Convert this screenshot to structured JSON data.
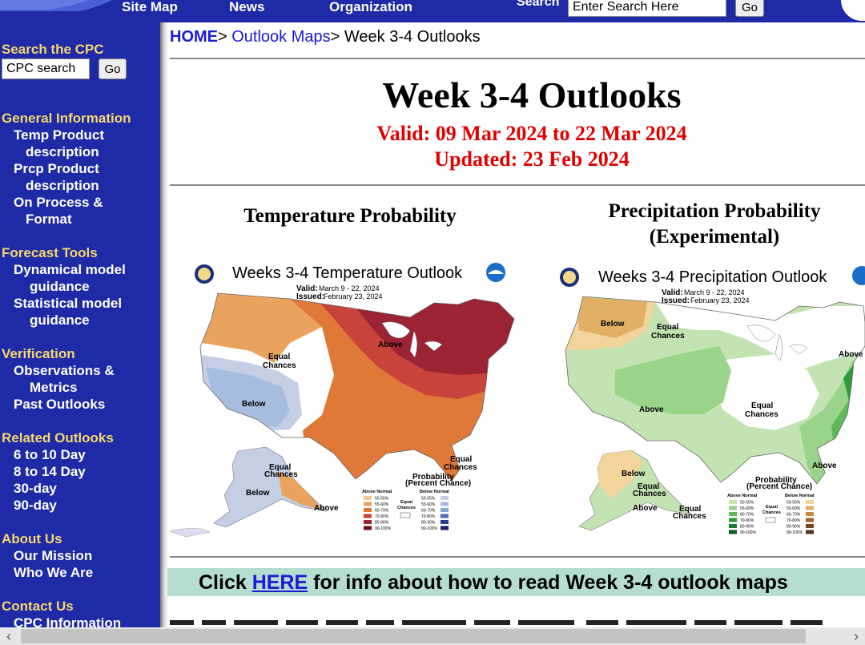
{
  "topnav": {
    "items": [
      "Site Map",
      "News",
      "Organization"
    ],
    "search_label": "Search",
    "search_value": "Enter Search Here",
    "go_label": "Go"
  },
  "sidebar": {
    "search_heading": "Search the CPC",
    "search_value": "CPC search",
    "go_label": "Go",
    "sections": [
      {
        "heading": "General Information",
        "links": [
          [
            "Temp Product",
            "description"
          ],
          [
            "Prcp Product",
            "description"
          ],
          [
            "On Process &",
            "Format"
          ]
        ]
      },
      {
        "heading": "Forecast Tools",
        "links": [
          [
            "Dynamical model",
            "guidance"
          ],
          [
            "Statistical model",
            "guidance"
          ]
        ]
      },
      {
        "heading": "Verification",
        "links": [
          [
            "Observations &",
            "Metrics"
          ],
          [
            "Past Outlooks"
          ]
        ]
      },
      {
        "heading": "Related Outlooks",
        "links": [
          [
            "6 to 10 Day"
          ],
          [
            "8 to 14 Day"
          ],
          [
            "30-day"
          ],
          [
            "90-day"
          ]
        ]
      },
      {
        "heading": "About Us",
        "links": [
          [
            "Our Mission"
          ],
          [
            "Who We Are"
          ]
        ]
      },
      {
        "heading": "Contact Us",
        "links": [
          [
            "CPC Information"
          ]
        ]
      }
    ]
  },
  "breadcrumb": {
    "home": "HOME",
    "sep": "> ",
    "outlook_maps": "Outlook Maps",
    "current": "Week 3-4 Outlooks"
  },
  "title": "Week 3-4 Outlooks",
  "valid": "Valid: 09 Mar 2024 to 22 Mar 2024",
  "updated": "Updated: 23 Feb 2024",
  "temp": {
    "heading": "Temperature Probability",
    "map_title": "Weeks 3-4 Temperature Outlook",
    "valid": "Valid:",
    "valid_dates": "March 9 - 22, 2024",
    "issued": "Issued:",
    "issued_date": "February 23, 2024",
    "labels": {
      "above": "Above",
      "below": "Below",
      "equal": "Equal",
      "chances": "Chances"
    },
    "legend_title": "Probability",
    "legend_sub": "(Percent Chance)",
    "legend_above": "Above Normal",
    "legend_below": "Below Normal",
    "legend_equal": "Equal",
    "legend_equal2": "Chances",
    "legend_bins": [
      "50-55%",
      "55-60%",
      "60-70%",
      "70-80%",
      "80-90%",
      "90-100%"
    ],
    "above_colors": [
      "#f3c89a",
      "#eaa35f",
      "#e07838",
      "#c8433a",
      "#9b2334",
      "#6a1020"
    ],
    "below_colors": [
      "#c4cfe6",
      "#a6bde0",
      "#85a7d8",
      "#4f6fb8",
      "#263f8e",
      "#1a1f66"
    ]
  },
  "prcp": {
    "heading_line1": "Precipitation Probability",
    "heading_line2": "(Experimental)",
    "map_title": "Weeks 3-4 Precipitation Outlook",
    "valid": "Valid:",
    "valid_dates": "March 9 - 22, 2024",
    "issued": "Issued:",
    "issued_date": "February 23, 2024",
    "labels": {
      "above": "Above",
      "below": "Below",
      "equal": "Equal",
      "chances": "Chances"
    },
    "legend_title": "Probability",
    "legend_sub": "(Percent Chance)",
    "legend_above": "Above Normal",
    "legend_below": "Below Normal",
    "legend_equal": "Equal",
    "legend_equal2": "Chances",
    "legend_bins": [
      "50-55%",
      "55-60%",
      "60-70%",
      "70-80%",
      "80-90%",
      "90-100%"
    ],
    "above_colors": [
      "#c3e3b3",
      "#9ad48a",
      "#5fb85a",
      "#2f9a3b",
      "#1b7a2c",
      "#0e5a1f"
    ],
    "below_colors": [
      "#f3d49a",
      "#e2b064",
      "#c8893a",
      "#a0622a",
      "#7a4420",
      "#5a3018"
    ]
  },
  "info": {
    "click": "Click ",
    "here": "HERE",
    "rest": " for info about how to read Week 3-4 outlook maps"
  }
}
